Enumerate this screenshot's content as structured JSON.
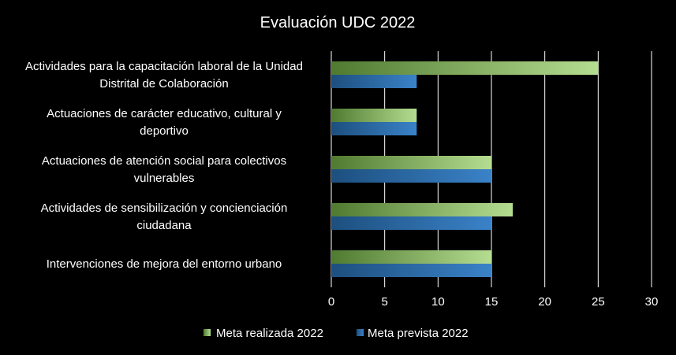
{
  "chart_data": {
    "type": "bar",
    "orientation": "horizontal",
    "title": "Evaluación UDC 2022",
    "categories": [
      [
        "Actividades para la capacitación laboral de la Unidad",
        "Distrital de Colaboración"
      ],
      [
        "Actuaciones de carácter educativo, cultural y",
        "deportivo"
      ],
      [
        "Actuaciones de atención social para colectivos",
        "vulnerables"
      ],
      [
        "Actividades de sensibilización y concienciación",
        "ciudadana"
      ],
      [
        "Intervenciones  de mejora del entorno urbano"
      ]
    ],
    "series": [
      {
        "name": "Meta realizada 2022",
        "values": [
          25,
          8,
          15,
          17,
          15
        ],
        "color_dark": "#4f7a30",
        "color_light": "#b5dd91"
      },
      {
        "name": "Meta prevista 2022",
        "values": [
          8,
          8,
          15,
          15,
          15
        ],
        "color_dark": "#1d4f7e",
        "color_light": "#3a82c8"
      }
    ],
    "xlim": [
      0,
      30
    ],
    "xticks": [
      "0",
      "5",
      "10",
      "15",
      "20",
      "25",
      "30"
    ],
    "grid": true,
    "legend_position": "bottom"
  }
}
